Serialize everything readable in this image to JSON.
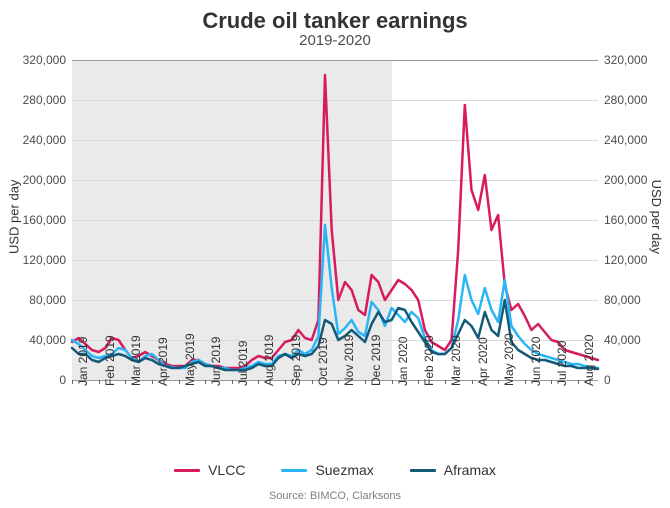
{
  "title": "Crude oil tanker earnings",
  "subtitle": "2019-2020",
  "ylabel": "USD per day",
  "source": "Source: BIMCO, Clarksons",
  "ylim": [
    0,
    320000
  ],
  "ytick_step": 40000,
  "yticks_labels": [
    "0",
    "40,000",
    "80,000",
    "120,000",
    "160,000",
    "200,000",
    "240,000",
    "280,000",
    "320,000"
  ],
  "background_color": "#ffffff",
  "grid_color": "#d9d9d9",
  "shade_color": "#e8e8e8",
  "shade_end_category": "Jan 2020",
  "x_categories": [
    "Jan 2019",
    "Feb 2019",
    "Mar 2019",
    "Apr 2019",
    "May 2019",
    "Jun 2019",
    "Jul 2019",
    "Aug 2019",
    "Sep 2019",
    "Oct 2019",
    "Nov 2019",
    "Dec 2019",
    "Jan 2020",
    "Feb 2020",
    "Mar 2020",
    "Apr 2020",
    "May 2020",
    "Jun 2020",
    "Jul 2020",
    "Aug 2020"
  ],
  "samples_per_category": 4,
  "series": [
    {
      "name": "VLCC",
      "color": "#d81b60",
      "width": 2.5,
      "values": [
        38000,
        42000,
        36000,
        30000,
        28000,
        32000,
        42000,
        40000,
        30000,
        22000,
        24000,
        28000,
        24000,
        20000,
        16000,
        14000,
        14000,
        14000,
        20000,
        20000,
        16000,
        14000,
        14000,
        12000,
        12000,
        12000,
        14000,
        20000,
        24000,
        22000,
        22000,
        30000,
        38000,
        40000,
        50000,
        42000,
        40000,
        60000,
        305000,
        150000,
        80000,
        98000,
        90000,
        70000,
        65000,
        105000,
        98000,
        80000,
        90000,
        100000,
        96000,
        90000,
        80000,
        50000,
        38000,
        34000,
        30000,
        40000,
        130000,
        275000,
        190000,
        170000,
        205000,
        150000,
        165000,
        95000,
        70000,
        76000,
        64000,
        50000,
        56000,
        48000,
        40000,
        38000,
        30000,
        28000,
        26000,
        24000,
        22000,
        20000
      ]
    },
    {
      "name": "Suezmax",
      "color": "#29b6f6",
      "width": 2.5,
      "values": [
        40000,
        36000,
        30000,
        24000,
        22000,
        24000,
        26000,
        32000,
        30000,
        22000,
        18000,
        24000,
        26000,
        20000,
        14000,
        13000,
        12000,
        12000,
        18000,
        20000,
        16000,
        14000,
        12000,
        12000,
        10000,
        10000,
        12000,
        14000,
        18000,
        16000,
        16000,
        24000,
        26000,
        24000,
        30000,
        26000,
        30000,
        44000,
        155000,
        92000,
        46000,
        52000,
        60000,
        48000,
        44000,
        78000,
        70000,
        54000,
        72000,
        65000,
        58000,
        68000,
        62000,
        42000,
        30000,
        26000,
        26000,
        32000,
        60000,
        105000,
        80000,
        66000,
        92000,
        70000,
        58000,
        100000,
        54000,
        44000,
        36000,
        30000,
        26000,
        24000,
        22000,
        20000,
        18000,
        16000,
        16000,
        14000,
        13000,
        12000
      ]
    },
    {
      "name": "Aframax",
      "color": "#135a78",
      "width": 2.5,
      "values": [
        32000,
        26000,
        26000,
        20000,
        18000,
        22000,
        24000,
        26000,
        24000,
        20000,
        18000,
        22000,
        20000,
        16000,
        14000,
        12000,
        12000,
        14000,
        16000,
        18000,
        14000,
        14000,
        12000,
        10000,
        10000,
        10000,
        10000,
        12000,
        16000,
        14000,
        14000,
        22000,
        26000,
        22000,
        26000,
        24000,
        26000,
        34000,
        60000,
        56000,
        40000,
        44000,
        50000,
        44000,
        38000,
        56000,
        68000,
        58000,
        60000,
        72000,
        70000,
        58000,
        48000,
        38000,
        28000,
        26000,
        26000,
        32000,
        46000,
        60000,
        54000,
        42000,
        68000,
        50000,
        44000,
        80000,
        38000,
        30000,
        26000,
        22000,
        20000,
        20000,
        18000,
        16000,
        14000,
        14000,
        12000,
        12000,
        12000,
        11000
      ]
    }
  ],
  "legend_labels": [
    "VLCC",
    "Suezmax",
    "Aframax"
  ],
  "title_fontsize": 22,
  "subtitle_fontsize": 15,
  "axis_label_fontsize": 13,
  "tick_fontsize": 12
}
